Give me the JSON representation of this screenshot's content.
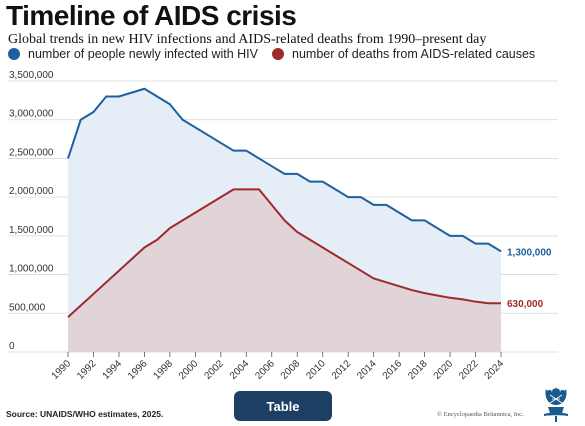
{
  "title": "Timeline of AIDS crisis",
  "subtitle": "Global trends in new HIV infections and AIDS-related deaths from 1990–present day",
  "legend": [
    {
      "label": "number of people newly infected with HIV",
      "color": "#1f5fa0"
    },
    {
      "label": "number of deaths from AIDS-related causes",
      "color": "#9e2a2b"
    }
  ],
  "colors": {
    "infections_line": "#1f5fa0",
    "infections_fill": "#e5edf6",
    "deaths_line": "#9e2a2b",
    "deaths_fill": "#e0d4d8",
    "grid": "#d8d8d8"
  },
  "chart_data": {
    "type": "area",
    "x": [
      1990,
      1991,
      1992,
      1993,
      1994,
      1995,
      1996,
      1997,
      1998,
      1999,
      2000,
      2001,
      2002,
      2003,
      2004,
      2005,
      2006,
      2007,
      2008,
      2009,
      2010,
      2011,
      2012,
      2013,
      2014,
      2015,
      2016,
      2017,
      2018,
      2019,
      2020,
      2021,
      2022,
      2023,
      2024
    ],
    "series": [
      {
        "name": "number of people newly infected with HIV",
        "values": [
          2500000,
          3000000,
          3100000,
          3300000,
          3300000,
          3350000,
          3400000,
          3300000,
          3200000,
          3000000,
          2900000,
          2800000,
          2700000,
          2600000,
          2600000,
          2500000,
          2400000,
          2300000,
          2300000,
          2200000,
          2200000,
          2100000,
          2000000,
          2000000,
          1900000,
          1900000,
          1800000,
          1700000,
          1700000,
          1600000,
          1500000,
          1500000,
          1400000,
          1400000,
          1300000
        ]
      },
      {
        "name": "number of deaths from AIDS-related causes",
        "values": [
          450000,
          600000,
          750000,
          900000,
          1050000,
          1200000,
          1350000,
          1450000,
          1600000,
          1700000,
          1800000,
          1900000,
          2000000,
          2100000,
          2100000,
          2100000,
          1900000,
          1700000,
          1550000,
          1450000,
          1350000,
          1250000,
          1150000,
          1050000,
          950000,
          900000,
          850000,
          800000,
          760000,
          730000,
          700000,
          680000,
          650000,
          630000,
          630000
        ]
      }
    ],
    "end_labels": [
      "1,300,000",
      "630,000"
    ],
    "y_ticks": [
      "0",
      "500,000",
      "1,000,000",
      "1,500,000",
      "2,000,000",
      "2,500,000",
      "3,000,000",
      "3,500,000"
    ],
    "x_ticks": [
      "1990",
      "1992",
      "1994",
      "1996",
      "1998",
      "2000",
      "2002",
      "2004",
      "2006",
      "2008",
      "2010",
      "2012",
      "2014",
      "2016",
      "2018",
      "2020",
      "2022",
      "2024"
    ],
    "xlim": [
      1990,
      2024
    ],
    "ylim": [
      0,
      3500000
    ],
    "grid": true,
    "legend_position": "top"
  },
  "footer": {
    "source": "Source: UNAIDS/WHO estimates, 2025.",
    "button_label": "Table",
    "copyright": "© Encyclopaedia Britannica, Inc."
  }
}
